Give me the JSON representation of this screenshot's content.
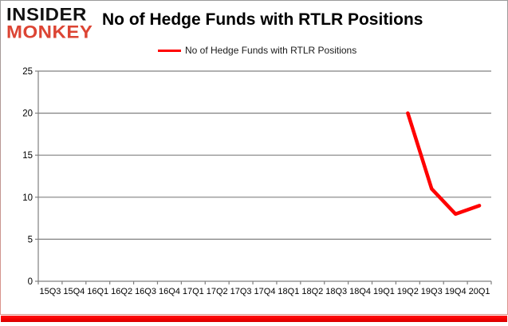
{
  "logo": {
    "line1": "INSIDER",
    "line2": "MONKEY"
  },
  "header": {
    "title": "No of Hedge Funds with RTLR Positions"
  },
  "legend": {
    "label": "No of Hedge Funds with RTLR Positions",
    "swatch_color": "#ff0000"
  },
  "colors": {
    "line": "#ff0000",
    "grid": "#808080",
    "tick_label": "#000000",
    "logo_accent": "#dc4433",
    "bottom_bar": "#f40000"
  },
  "chart_data": {
    "type": "line",
    "title": "No of Hedge Funds with RTLR Positions",
    "categories": [
      "15Q3",
      "15Q4",
      "16Q1",
      "16Q2",
      "16Q3",
      "16Q4",
      "17Q1",
      "17Q2",
      "17Q3",
      "17Q4",
      "18Q1",
      "18Q2",
      "18Q3",
      "18Q4",
      "19Q1",
      "19Q2",
      "19Q3",
      "19Q4",
      "20Q1"
    ],
    "series": [
      {
        "name": "No of Hedge Funds with RTLR Positions",
        "color": "#ff0000",
        "values": [
          null,
          null,
          null,
          null,
          null,
          null,
          null,
          null,
          null,
          null,
          null,
          null,
          null,
          null,
          null,
          20,
          11,
          8,
          9
        ]
      }
    ],
    "xlabel": "",
    "ylabel": "",
    "ylim": [
      0,
      25
    ],
    "ytick_step": 5,
    "grid": true,
    "legend_position": "top"
  }
}
